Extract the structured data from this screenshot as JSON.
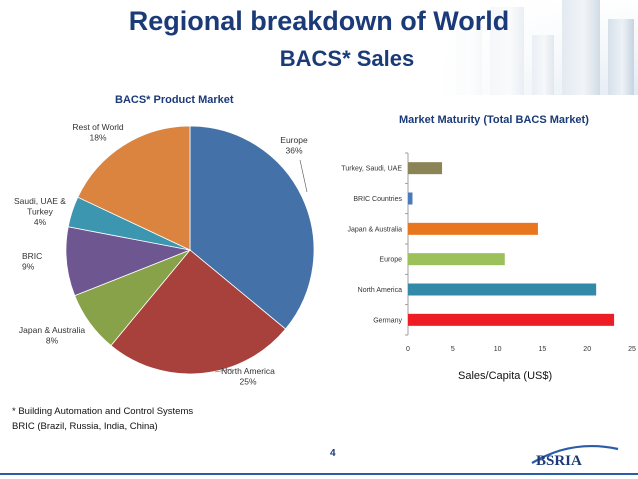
{
  "slide": {
    "title_line1": "Regional breakdown of World",
    "title_line2": "BACS* Sales",
    "page_number": "4",
    "footnotes": [
      "* Building Automation and Control Systems",
      "BRIC (Brazil, Russia, India, China)"
    ],
    "logo_text": "BSRIA"
  },
  "chart_data": [
    {
      "type": "pie",
      "title": "BACS* Product Market",
      "slices": [
        {
          "name": "Europe",
          "value": 36,
          "label": "36%",
          "color": "#4472a8"
        },
        {
          "name": "North America",
          "value": 25,
          "label": "25%",
          "color": "#a8403c"
        },
        {
          "name": "Japan & Australia",
          "value": 8,
          "label": "8%",
          "color": "#88a24a"
        },
        {
          "name": "BRIC",
          "value": 9,
          "label": "9%",
          "color": "#6e5690"
        },
        {
          "name": "Saudi, UAE & Turkey",
          "value": 4,
          "label": "4%",
          "color": "#3c96b0"
        },
        {
          "name": "Rest of World",
          "value": 18,
          "label": "18%",
          "color": "#da8440"
        }
      ]
    },
    {
      "type": "bar",
      "orientation": "horizontal",
      "title": "Market Maturity (Total BACS Market)",
      "xlabel": "Sales/Capita (US$)",
      "xlim": [
        0,
        25
      ],
      "xticks": [
        0,
        5,
        10,
        15,
        20,
        25
      ],
      "categories": [
        "Turkey, Saudi, UAE",
        "BRIC Countries",
        "Japan & Australia",
        "Europe",
        "North America",
        "Germany"
      ],
      "values": [
        3.8,
        0.5,
        14.5,
        10.8,
        21,
        23
      ],
      "colors": [
        "#8a8456",
        "#4a7ab8",
        "#e8761e",
        "#9cc05a",
        "#338aa8",
        "#ee1c24"
      ],
      "grid": false,
      "legend": false
    }
  ]
}
